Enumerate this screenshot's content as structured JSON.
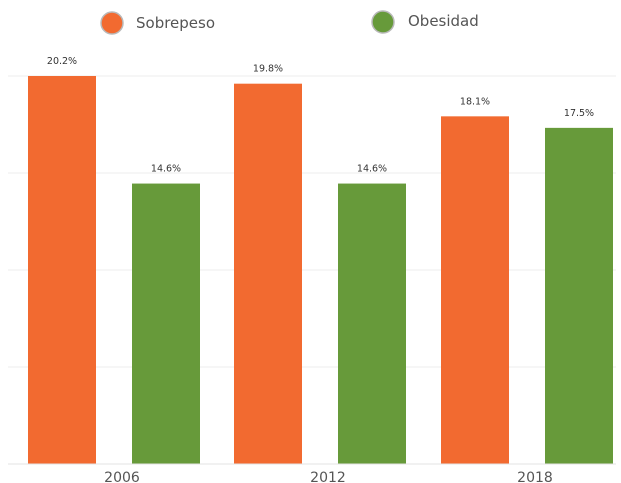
{
  "chart_data": {
    "type": "bar",
    "categories": [
      "2006",
      "2012",
      "2018"
    ],
    "series": [
      {
        "name": "Sobrepeso",
        "values": [
          20.2,
          19.8,
          18.1
        ],
        "labels": [
          "20.2%",
          "19.8%",
          "18.1%"
        ],
        "color": "#f26a30"
      },
      {
        "name": "Obesidad",
        "values": [
          14.6,
          14.6,
          17.5
        ],
        "labels": [
          "14.6%",
          "14.6%",
          "17.5%"
        ],
        "color": "#679a3a"
      }
    ],
    "ylim": [
      0,
      20.2
    ],
    "grid": true,
    "legend_position": "top",
    "title": "",
    "xlabel": "",
    "ylabel": ""
  }
}
